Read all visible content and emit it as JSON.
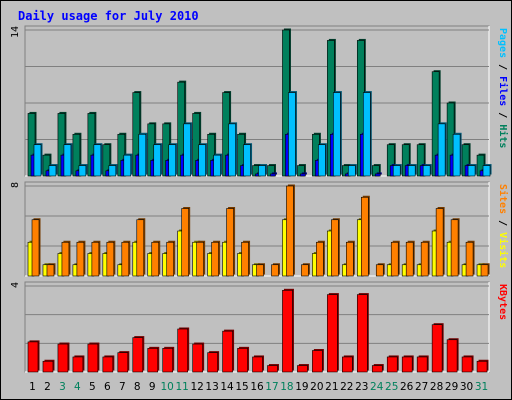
{
  "title": "Daily usage for July 2010",
  "colors": {
    "title": "#0000ff",
    "hits": "#00805c",
    "files": "#0000ff",
    "pages": "#00c0ff",
    "visits": "#ffff00",
    "sites": "#ff8000",
    "kbytes": "#ff0000",
    "weekend_label": "#00805c",
    "weekday_label": "#000000"
  },
  "chart_data": [
    {
      "type": "bar",
      "panel": "hits-files-pages",
      "ymax_label": "14",
      "ylim": [
        0,
        14
      ],
      "axis_label_parts": [
        {
          "text": "Pages",
          "color": "#00c0ff"
        },
        {
          "text": " / ",
          "color": "#000000"
        },
        {
          "text": "Files",
          "color": "#0000ff"
        },
        {
          "text": " / ",
          "color": "#000000"
        },
        {
          "text": "Hits",
          "color": "#00805c"
        }
      ],
      "categories": [
        "1",
        "2",
        "3",
        "4",
        "5",
        "6",
        "7",
        "8",
        "9",
        "10",
        "11",
        "12",
        "13",
        "14",
        "15",
        "16",
        "17",
        "18",
        "19",
        "20",
        "21",
        "22",
        "23",
        "24",
        "25",
        "26",
        "27",
        "28",
        "29",
        "30",
        "31"
      ],
      "series": [
        {
          "name": "Hits",
          "values": [
            6,
            2,
            6,
            4,
            6,
            3,
            4,
            8,
            5,
            5,
            9,
            6,
            4,
            8,
            4,
            1,
            1,
            14,
            1,
            4,
            13,
            1,
            13,
            1,
            3,
            3,
            3,
            10,
            7,
            3,
            2
          ]
        },
        {
          "name": "Files",
          "values": [
            2,
            0.5,
            2,
            0.5,
            2,
            0.5,
            1.5,
            2,
            1.5,
            1.5,
            2,
            1.5,
            1.5,
            2,
            1,
            0.2,
            0.2,
            4,
            0.2,
            1.5,
            4,
            0.2,
            4,
            0.2,
            1,
            1,
            1,
            2,
            2,
            1,
            0.5
          ]
        },
        {
          "name": "Pages",
          "values": [
            3,
            1,
            3,
            1,
            3,
            1,
            2,
            4,
            3,
            3,
            5,
            3,
            2,
            5,
            3,
            1,
            0,
            8,
            0,
            3,
            8,
            1,
            8,
            0,
            1,
            1,
            1,
            5,
            4,
            1,
            1
          ]
        }
      ]
    },
    {
      "type": "bar",
      "panel": "visits-sites",
      "ymax_label": "8",
      "ylim": [
        0,
        8
      ],
      "axis_label_parts": [
        {
          "text": "Sites",
          "color": "#ff8000"
        },
        {
          "text": " / ",
          "color": "#000000"
        },
        {
          "text": "Visits",
          "color": "#ffff00"
        }
      ],
      "categories": [
        "1",
        "2",
        "3",
        "4",
        "5",
        "6",
        "7",
        "8",
        "9",
        "10",
        "11",
        "12",
        "13",
        "14",
        "15",
        "16",
        "17",
        "18",
        "19",
        "20",
        "21",
        "22",
        "23",
        "24",
        "25",
        "26",
        "27",
        "28",
        "29",
        "30",
        "31"
      ],
      "series": [
        {
          "name": "Visits",
          "values": [
            3,
            1,
            2,
            1,
            2,
            2,
            1,
            3,
            2,
            2,
            4,
            3,
            2,
            3,
            2,
            1,
            0,
            5,
            0,
            2,
            4,
            1,
            5,
            0,
            1,
            1,
            1,
            4,
            3,
            1,
            1
          ]
        },
        {
          "name": "Sites",
          "values": [
            5,
            1,
            3,
            3,
            3,
            3,
            3,
            5,
            3,
            3,
            6,
            3,
            3,
            6,
            3,
            1,
            1,
            8,
            1,
            3,
            5,
            3,
            7,
            1,
            3,
            3,
            3,
            6,
            5,
            3,
            1
          ]
        }
      ]
    },
    {
      "type": "bar",
      "panel": "kbytes",
      "ymax_label": "4",
      "ylim": [
        0,
        4
      ],
      "axis_label_parts": [
        {
          "text": "KBytes",
          "color": "#ff0000"
        }
      ],
      "categories": [
        "1",
        "2",
        "3",
        "4",
        "5",
        "6",
        "7",
        "8",
        "9",
        "10",
        "11",
        "12",
        "13",
        "14",
        "15",
        "16",
        "17",
        "18",
        "19",
        "20",
        "21",
        "22",
        "23",
        "24",
        "25",
        "26",
        "27",
        "28",
        "29",
        "30",
        "31"
      ],
      "series": [
        {
          "name": "KBytes",
          "values": [
            1.4,
            0.5,
            1.3,
            0.7,
            1.3,
            0.7,
            0.9,
            1.6,
            1.1,
            1.1,
            2.0,
            1.3,
            0.9,
            1.9,
            1.1,
            0.7,
            0.3,
            3.8,
            0.3,
            1.0,
            3.6,
            0.7,
            3.6,
            0.3,
            0.7,
            0.7,
            0.7,
            2.2,
            1.5,
            0.7,
            0.5
          ]
        }
      ]
    }
  ],
  "x_axis": {
    "labels": [
      "1",
      "2",
      "3",
      "4",
      "5",
      "6",
      "7",
      "8",
      "9",
      "10",
      "11",
      "12",
      "13",
      "14",
      "15",
      "16",
      "17",
      "18",
      "19",
      "20",
      "21",
      "22",
      "23",
      "24",
      "25",
      "26",
      "27",
      "28",
      "29",
      "30",
      "31"
    ],
    "weekend": [
      false,
      false,
      true,
      true,
      false,
      false,
      false,
      false,
      false,
      true,
      true,
      false,
      false,
      false,
      false,
      false,
      true,
      true,
      false,
      false,
      false,
      false,
      false,
      true,
      true,
      false,
      false,
      false,
      false,
      false,
      true
    ]
  }
}
